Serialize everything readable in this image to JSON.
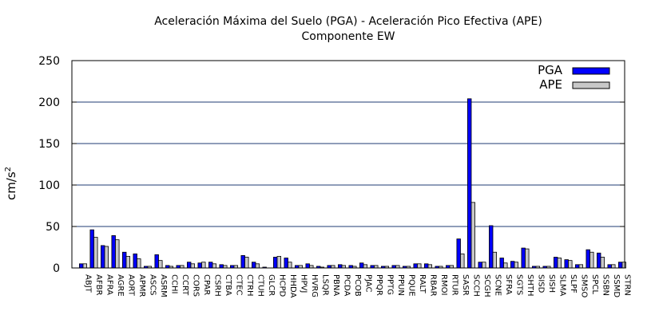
{
  "chart_data": {
    "type": "bar",
    "title_line1": "Aceleración Máxima del Suelo (PGA) -  Aceleración Pico Efectiva (APE)",
    "title_line2": "Componente EW",
    "ylabel_main": "cm/s",
    "ylabel_sup": "2",
    "ylim": [
      0,
      250
    ],
    "yticks": [
      0,
      50,
      100,
      150,
      200,
      250
    ],
    "grid": true,
    "legend_position": "top-right",
    "categories": [
      "ABJT",
      "AFBR",
      "AFRA",
      "AGRE",
      "AORT",
      "APMR",
      "ASCS",
      "ASRM",
      "CCHI",
      "CCRT",
      "CORS",
      "CPAR",
      "CSRH",
      "CTBA",
      "CTEC",
      "CTRH",
      "CTUH",
      "GLCR",
      "HCPD",
      "HHDA",
      "HPVJ",
      "HVRG",
      "LSQR",
      "PBNA",
      "PCDA",
      "PCOB",
      "PJAC",
      "PPQR",
      "PPTG",
      "PPUN",
      "PQUE",
      "RALT",
      "RBAR",
      "RMOI",
      "RTUR",
      "SASR",
      "SCCH",
      "SCGH",
      "SCNE",
      "SFRA",
      "SGTS",
      "SHTH",
      "SISD",
      "SISH",
      "SLMA",
      "SLPF",
      "SMSO",
      "SPCL",
      "SSBN",
      "SSMD",
      "STRN"
    ],
    "series": [
      {
        "name": "PGA",
        "color": "#0000ff",
        "values": [
          5,
          46,
          27,
          39,
          19,
          17,
          2,
          16,
          3,
          3,
          7,
          6,
          7,
          4,
          3,
          15,
          7,
          1,
          13,
          12,
          3,
          5,
          2,
          3,
          4,
          3,
          6,
          3,
          2,
          3,
          2,
          5,
          5,
          2,
          3,
          35,
          204,
          7,
          51,
          12,
          8,
          24,
          2,
          2,
          13,
          10,
          4,
          22,
          18,
          4,
          7
        ]
      },
      {
        "name": "APE",
        "color": "#c8c8c8",
        "values": [
          5,
          37,
          26,
          34,
          14,
          11,
          2,
          9,
          2,
          3,
          5,
          7,
          5,
          3,
          3,
          13,
          5,
          0,
          14,
          7,
          3,
          3,
          1,
          3,
          3,
          2,
          4,
          3,
          2,
          3,
          2,
          5,
          4,
          2,
          3,
          17,
          79,
          7,
          19,
          6,
          7,
          23,
          2,
          2,
          12,
          9,
          4,
          19,
          13,
          4,
          7
        ]
      }
    ]
  }
}
